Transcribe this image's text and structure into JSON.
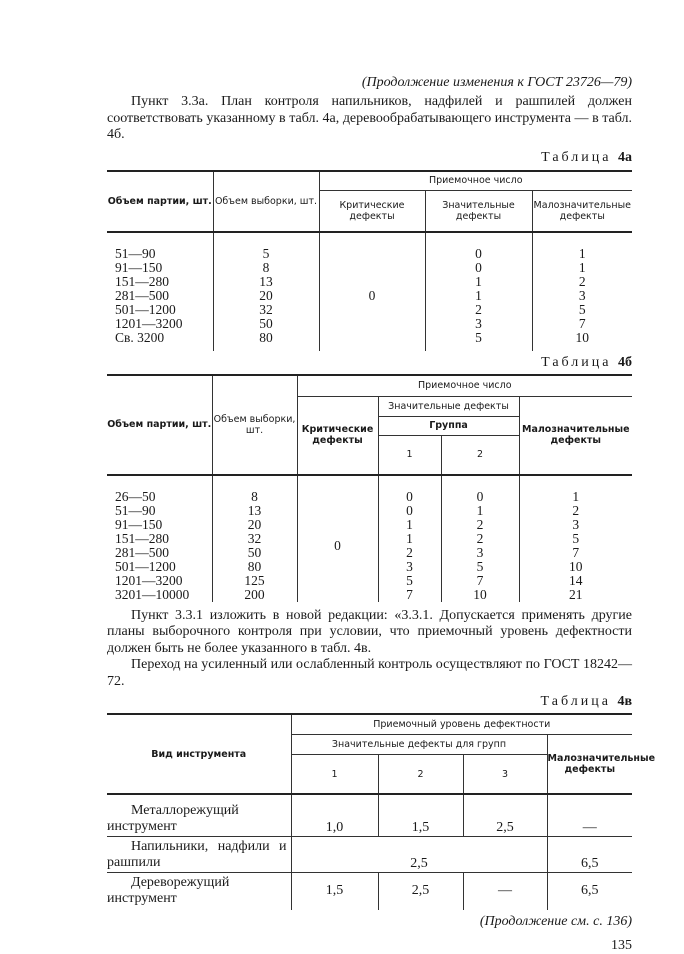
{
  "header": {
    "continuation": "(Продолжение изменения к ГОСТ 23726—79)"
  },
  "para1": "Пункт 3.3а. План контроля напильников, надфилей и рашпилей должен соответствовать указанному в табл. 4а, деревообрабатывающего инструмента — в табл. 4б.",
  "table_4a": {
    "caption_word": "Таблица",
    "caption_num": "4а",
    "headers": {
      "lot": "Объем партии, шт.",
      "sample": "Объем выборки, шт.",
      "acceptance": "Приемочное число",
      "critical": "Критические дефекты",
      "major": "Значительные дефекты",
      "minor": "Малозначительные дефекты"
    },
    "critical_value": "0",
    "rows": [
      {
        "lot": "51—90",
        "sample": "5",
        "major": "0",
        "minor": "1"
      },
      {
        "lot": "91—150",
        "sample": "8",
        "major": "0",
        "minor": "1"
      },
      {
        "lot": "151—280",
        "sample": "13",
        "major": "1",
        "minor": "2"
      },
      {
        "lot": "281—500",
        "sample": "20",
        "major": "1",
        "minor": "3"
      },
      {
        "lot": "501—1200",
        "sample": "32",
        "major": "2",
        "minor": "5"
      },
      {
        "lot": "1201—3200",
        "sample": "50",
        "major": "3",
        "minor": "7"
      },
      {
        "lot": "Св. 3200",
        "sample": "80",
        "major": "5",
        "minor": "10"
      }
    ]
  },
  "table_4b": {
    "caption_word": "Таблица",
    "caption_num": "4б",
    "headers": {
      "lot": "Объем партии, шт.",
      "sample": "Объем выборки, шт.",
      "acceptance": "Приемочное число",
      "critical": "Критические дефекты",
      "major": "Значительные дефекты",
      "group": "Группа",
      "g1": "1",
      "g2": "2",
      "minor": "Малозначительные дефекты"
    },
    "critical_value": "0",
    "rows": [
      {
        "lot": "26—50",
        "sample": "8",
        "g1": "0",
        "g2": "0",
        "minor": "1"
      },
      {
        "lot": "51—90",
        "sample": "13",
        "g1": "0",
        "g2": "1",
        "minor": "2"
      },
      {
        "lot": "91—150",
        "sample": "20",
        "g1": "1",
        "g2": "2",
        "minor": "3"
      },
      {
        "lot": "151—280",
        "sample": "32",
        "g1": "1",
        "g2": "2",
        "minor": "5"
      },
      {
        "lot": "281—500",
        "sample": "50",
        "g1": "2",
        "g2": "3",
        "minor": "7"
      },
      {
        "lot": "501—1200",
        "sample": "80",
        "g1": "3",
        "g2": "5",
        "minor": "10"
      },
      {
        "lot": "1201—3200",
        "sample": "125",
        "g1": "5",
        "g2": "7",
        "minor": "14"
      },
      {
        "lot": "3201—10000",
        "sample": "200",
        "g1": "7",
        "g2": "10",
        "minor": "21"
      }
    ]
  },
  "para2": "Пункт 3.3.1 изложить в новой редакции: «3.3.1. Допускается применять другие планы выборочного контроля при условии, что приемочный уровень дефектности должен быть не более указанного в табл. 4в.",
  "para3": "Переход на усиленный или ослабленный контроль осуществляют по ГОСТ 18242—72.",
  "table_4v": {
    "caption_word": "Таблица",
    "caption_num": "4в",
    "headers": {
      "tool": "Вид инструмента",
      "aql": "Приемочный уровень дефектности",
      "major_groups": "Значительные дефекты для групп",
      "g1": "1",
      "g2": "2",
      "g3": "3",
      "minor": "Малозначительные дефекты"
    },
    "rows": [
      {
        "tool": "Металлорежущий инструмент",
        "g1": "1,0",
        "g2": "1,5",
        "g3": "2,5",
        "minor": "—"
      },
      {
        "tool": "Напильники, надфили и рашпили",
        "merged": "2,5",
        "minor": "6,5"
      },
      {
        "tool": "Дереворежущий инструмент",
        "g1": "1,5",
        "g2": "2,5",
        "g3": "—",
        "minor": "6,5"
      }
    ]
  },
  "footer": {
    "continuation": "(Продолжение см. с. 136)",
    "page_number": "135"
  }
}
